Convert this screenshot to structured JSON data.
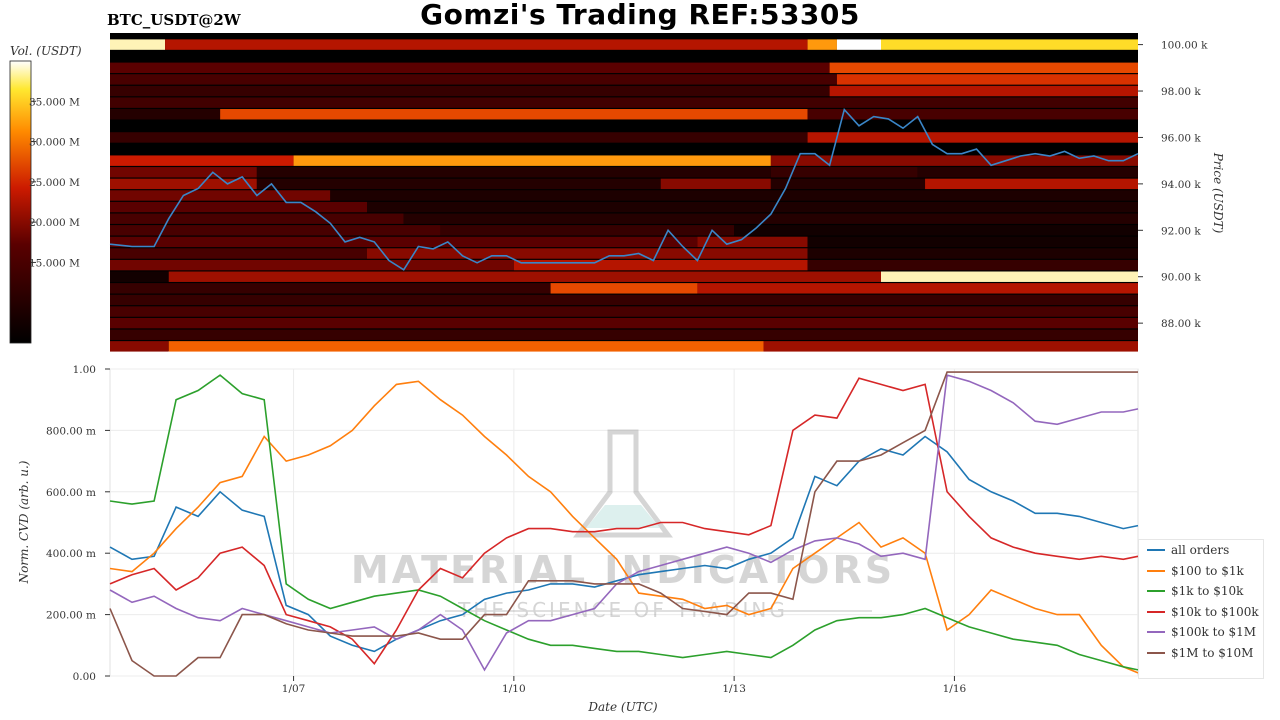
{
  "header": {
    "title": "Gomzi's Trading REF:53305",
    "symbol": "BTC_USDT@2W"
  },
  "watermark": {
    "brand": "MATERIAL INDICATORS",
    "tagline": "THE SCIENCE OF TRADING"
  },
  "colors": {
    "heatmap_bg": "#000000",
    "price_line": "#3a86c8",
    "colorbar_low": "#000000",
    "colorbar_mid": "#cc1a00",
    "colorbar_high": "#ffffff"
  },
  "chart_data": [
    {
      "type": "heatmap",
      "colorbar_label": "Vol. (USDT)",
      "colorbar_ticks": [
        "35.000 M",
        "30.000 M",
        "25.000 M",
        "20.000 M",
        "15.000 M"
      ],
      "colorbar_tick_values": [
        35,
        30,
        25,
        20,
        15
      ],
      "colorbar_range": [
        5,
        40
      ],
      "ylabel": "Price (USDT)",
      "ylim": [
        86.8,
        100.5
      ],
      "y_ticks": [
        "100.00 k",
        "98.00 k",
        "96.00 k",
        "94.00 k",
        "92.00 k",
        "90.00 k",
        "88.00 k"
      ],
      "y_tick_values": [
        100,
        98,
        96,
        94,
        92,
        90,
        88
      ],
      "x_range_days": [
        4.5,
        18.5
      ],
      "bands": [
        {
          "price": 100.0,
          "segments": [
            [
              4.5,
              5.25,
              0.95
            ],
            [
              5.25,
              14.0,
              0.45
            ],
            [
              14.0,
              14.4,
              0.75
            ],
            [
              14.4,
              15.0,
              1.0
            ],
            [
              15.0,
              18.5,
              0.85
            ]
          ]
        },
        {
          "price": 99.0,
          "segments": [
            [
              4.5,
              14.3,
              0.25
            ],
            [
              14.3,
              18.5,
              0.6
            ]
          ]
        },
        {
          "price": 98.5,
          "segments": [
            [
              4.5,
              14.4,
              0.2
            ],
            [
              14.4,
              18.5,
              0.55
            ]
          ]
        },
        {
          "price": 98.0,
          "segments": [
            [
              4.5,
              14.3,
              0.15
            ],
            [
              14.3,
              18.5,
              0.45
            ]
          ]
        },
        {
          "price": 97.5,
          "segments": [
            [
              4.5,
              18.5,
              0.18
            ]
          ]
        },
        {
          "price": 97.0,
          "segments": [
            [
              4.5,
              6.0,
              0.1
            ],
            [
              6.0,
              14.0,
              0.6
            ],
            [
              14.0,
              18.5,
              0.2
            ]
          ]
        },
        {
          "price": 96.0,
          "segments": [
            [
              4.5,
              14.0,
              0.15
            ],
            [
              14.0,
              18.5,
              0.45
            ]
          ]
        },
        {
          "price": 95.0,
          "segments": [
            [
              4.5,
              7.0,
              0.5
            ],
            [
              7.0,
              13.5,
              0.75
            ],
            [
              13.5,
              18.5,
              0.35
            ]
          ]
        },
        {
          "price": 94.5,
          "segments": [
            [
              4.5,
              6.5,
              0.3
            ],
            [
              6.5,
              13.5,
              0.1
            ],
            [
              13.5,
              15.5,
              0.15
            ],
            [
              15.5,
              18.5,
              0.1
            ]
          ]
        },
        {
          "price": 94.0,
          "segments": [
            [
              4.5,
              6.5,
              0.4
            ],
            [
              6.5,
              12.0,
              0.1
            ],
            [
              12.0,
              13.5,
              0.35
            ],
            [
              13.5,
              15.6,
              0.1
            ],
            [
              15.6,
              18.5,
              0.45
            ]
          ]
        },
        {
          "price": 93.5,
          "segments": [
            [
              4.5,
              7.5,
              0.3
            ],
            [
              7.5,
              18.5,
              0.08
            ]
          ]
        },
        {
          "price": 93.0,
          "segments": [
            [
              4.5,
              8.0,
              0.25
            ],
            [
              8.0,
              18.5,
              0.08
            ]
          ]
        },
        {
          "price": 92.5,
          "segments": [
            [
              4.5,
              8.5,
              0.2
            ],
            [
              8.5,
              18.5,
              0.1
            ]
          ]
        },
        {
          "price": 92.0,
          "segments": [
            [
              4.5,
              9.0,
              0.2
            ],
            [
              9.0,
              13.0,
              0.15
            ],
            [
              13.0,
              18.5,
              0.05
            ]
          ]
        },
        {
          "price": 91.5,
          "segments": [
            [
              4.5,
              12.5,
              0.25
            ],
            [
              12.5,
              14.0,
              0.35
            ],
            [
              14.0,
              18.5,
              0.05
            ]
          ]
        },
        {
          "price": 91.0,
          "segments": [
            [
              4.5,
              8.0,
              0.2
            ],
            [
              8.0,
              14.0,
              0.35
            ],
            [
              14.0,
              18.5,
              0.08
            ]
          ]
        },
        {
          "price": 90.5,
          "segments": [
            [
              4.5,
              10.0,
              0.3
            ],
            [
              10.0,
              14.0,
              0.45
            ],
            [
              14.0,
              18.5,
              0.15
            ]
          ]
        },
        {
          "price": 90.0,
          "segments": [
            [
              4.5,
              5.3,
              0.05
            ],
            [
              5.3,
              15.0,
              0.4
            ],
            [
              15.0,
              18.5,
              0.95
            ]
          ]
        },
        {
          "price": 89.5,
          "segments": [
            [
              4.5,
              10.5,
              0.15
            ],
            [
              10.5,
              12.5,
              0.6
            ],
            [
              12.5,
              18.5,
              0.45
            ]
          ]
        },
        {
          "price": 89.0,
          "segments": [
            [
              4.5,
              18.5,
              0.15
            ]
          ]
        },
        {
          "price": 88.5,
          "segments": [
            [
              4.5,
              18.5,
              0.2
            ]
          ]
        },
        {
          "price": 88.0,
          "segments": [
            [
              4.5,
              18.5,
              0.25
            ]
          ]
        },
        {
          "price": 87.5,
          "segments": [
            [
              4.5,
              18.5,
              0.15
            ]
          ]
        },
        {
          "price": 87.0,
          "segments": [
            [
              4.5,
              5.3,
              0.35
            ],
            [
              5.3,
              13.4,
              0.65
            ],
            [
              13.4,
              18.5,
              0.4
            ]
          ]
        }
      ],
      "price": {
        "x": [
          4.5,
          4.8,
          5.1,
          5.3,
          5.5,
          5.7,
          5.9,
          6.1,
          6.3,
          6.5,
          6.7,
          6.9,
          7.1,
          7.3,
          7.5,
          7.7,
          7.9,
          8.1,
          8.3,
          8.5,
          8.7,
          8.9,
          9.1,
          9.3,
          9.5,
          9.7,
          9.9,
          10.1,
          10.3,
          10.5,
          10.7,
          10.9,
          11.1,
          11.3,
          11.5,
          11.7,
          11.9,
          12.1,
          12.3,
          12.5,
          12.7,
          12.9,
          13.1,
          13.3,
          13.5,
          13.7,
          13.9,
          14.1,
          14.3,
          14.5,
          14.7,
          14.9,
          15.1,
          15.3,
          15.5,
          15.7,
          15.9,
          16.1,
          16.3,
          16.5,
          16.7,
          16.9,
          17.1,
          17.3,
          17.5,
          17.7,
          17.9,
          18.1,
          18.3,
          18.5
        ],
        "y": [
          91.4,
          91.3,
          91.3,
          92.5,
          93.5,
          93.8,
          94.5,
          94.0,
          94.3,
          93.5,
          94.0,
          93.2,
          93.2,
          92.8,
          92.3,
          91.5,
          91.7,
          91.5,
          90.7,
          90.3,
          91.3,
          91.2,
          91.5,
          90.9,
          90.6,
          90.9,
          90.9,
          90.6,
          90.6,
          90.6,
          90.6,
          90.6,
          90.6,
          90.9,
          90.9,
          91.0,
          90.7,
          92.0,
          91.3,
          90.7,
          92.0,
          91.4,
          91.6,
          92.1,
          92.7,
          93.8,
          95.3,
          95.3,
          94.8,
          97.2,
          96.5,
          96.9,
          96.8,
          96.4,
          96.9,
          95.7,
          95.3,
          95.3,
          95.5,
          94.8,
          95.0,
          95.2,
          95.3,
          95.2,
          95.4,
          95.1,
          95.2,
          95.0,
          95.0,
          95.3
        ]
      }
    },
    {
      "type": "line",
      "xlabel": "Date (UTC)",
      "ylabel": "Norm. CVD (arb. u.)",
      "ylim": [
        0,
        1
      ],
      "y_ticks": [
        "1.00",
        "800.00 m",
        "600.00 m",
        "400.00 m",
        "200.00 m",
        "0.00"
      ],
      "y_tick_values": [
        1.0,
        0.8,
        0.6,
        0.4,
        0.2,
        0.0
      ],
      "x_range_days": [
        4.5,
        18.5
      ],
      "x_ticks": [
        "1/07",
        "1/10",
        "1/13",
        "1/16"
      ],
      "x_tick_values": [
        7,
        10,
        13,
        16
      ],
      "legend_position": "bottom-right",
      "x": [
        4.5,
        4.8,
        5.1,
        5.4,
        5.7,
        6.0,
        6.3,
        6.6,
        6.9,
        7.2,
        7.5,
        7.8,
        8.1,
        8.4,
        8.7,
        9.0,
        9.3,
        9.6,
        9.9,
        10.2,
        10.5,
        10.8,
        11.1,
        11.4,
        11.7,
        12.0,
        12.3,
        12.6,
        12.9,
        13.2,
        13.5,
        13.8,
        14.1,
        14.4,
        14.7,
        15.0,
        15.3,
        15.6,
        15.9,
        16.2,
        16.5,
        16.8,
        17.1,
        17.4,
        17.7,
        18.0,
        18.3,
        18.5
      ],
      "series": [
        {
          "name": "all orders",
          "color": "#1f77b4",
          "values": [
            0.42,
            0.38,
            0.39,
            0.55,
            0.52,
            0.6,
            0.54,
            0.52,
            0.23,
            0.2,
            0.13,
            0.1,
            0.08,
            0.12,
            0.15,
            0.18,
            0.2,
            0.25,
            0.27,
            0.28,
            0.3,
            0.3,
            0.29,
            0.31,
            0.33,
            0.34,
            0.35,
            0.36,
            0.35,
            0.38,
            0.4,
            0.45,
            0.65,
            0.62,
            0.7,
            0.74,
            0.72,
            0.78,
            0.73,
            0.64,
            0.6,
            0.57,
            0.53,
            0.53,
            0.52,
            0.5,
            0.48,
            0.49
          ]
        },
        {
          "name": "$100 to $1k",
          "color": "#ff7f0e",
          "values": [
            0.35,
            0.34,
            0.4,
            0.48,
            0.55,
            0.63,
            0.65,
            0.78,
            0.7,
            0.72,
            0.75,
            0.8,
            0.88,
            0.95,
            0.96,
            0.9,
            0.85,
            0.78,
            0.72,
            0.65,
            0.6,
            0.52,
            0.45,
            0.38,
            0.27,
            0.26,
            0.25,
            0.22,
            0.23,
            0.2,
            0.22,
            0.35,
            0.4,
            0.45,
            0.5,
            0.42,
            0.45,
            0.4,
            0.15,
            0.2,
            0.28,
            0.25,
            0.22,
            0.2,
            0.2,
            0.1,
            0.03,
            0.01
          ]
        },
        {
          "name": "$1k to $10k",
          "color": "#2ca02c",
          "values": [
            0.57,
            0.56,
            0.57,
            0.9,
            0.93,
            0.98,
            0.92,
            0.9,
            0.3,
            0.25,
            0.22,
            0.24,
            0.26,
            0.27,
            0.28,
            0.26,
            0.22,
            0.18,
            0.15,
            0.12,
            0.1,
            0.1,
            0.09,
            0.08,
            0.08,
            0.07,
            0.06,
            0.07,
            0.08,
            0.07,
            0.06,
            0.1,
            0.15,
            0.18,
            0.19,
            0.19,
            0.2,
            0.22,
            0.19,
            0.16,
            0.14,
            0.12,
            0.11,
            0.1,
            0.07,
            0.05,
            0.03,
            0.02
          ]
        },
        {
          "name": "$10k to $100k",
          "color": "#d62728",
          "values": [
            0.3,
            0.33,
            0.35,
            0.28,
            0.32,
            0.4,
            0.42,
            0.36,
            0.2,
            0.18,
            0.16,
            0.12,
            0.04,
            0.15,
            0.28,
            0.35,
            0.32,
            0.4,
            0.45,
            0.48,
            0.48,
            0.47,
            0.47,
            0.48,
            0.48,
            0.5,
            0.5,
            0.48,
            0.47,
            0.46,
            0.49,
            0.8,
            0.85,
            0.84,
            0.97,
            0.95,
            0.93,
            0.95,
            0.6,
            0.52,
            0.45,
            0.42,
            0.4,
            0.39,
            0.38,
            0.39,
            0.38,
            0.39
          ]
        },
        {
          "name": "$100k to $1M",
          "color": "#9467bd",
          "values": [
            0.28,
            0.24,
            0.26,
            0.22,
            0.19,
            0.18,
            0.22,
            0.2,
            0.18,
            0.16,
            0.14,
            0.15,
            0.16,
            0.12,
            0.15,
            0.2,
            0.15,
            0.02,
            0.14,
            0.18,
            0.18,
            0.2,
            0.22,
            0.3,
            0.34,
            0.36,
            0.38,
            0.4,
            0.42,
            0.4,
            0.37,
            0.41,
            0.44,
            0.45,
            0.43,
            0.39,
            0.4,
            0.38,
            0.98,
            0.96,
            0.93,
            0.89,
            0.83,
            0.82,
            0.84,
            0.86,
            0.86,
            0.87
          ]
        },
        {
          "name": "$1M to $10M",
          "color": "#8c564b",
          "values": [
            0.22,
            0.05,
            0.0,
            0.0,
            0.06,
            0.06,
            0.2,
            0.2,
            0.17,
            0.15,
            0.14,
            0.13,
            0.13,
            0.13,
            0.14,
            0.12,
            0.12,
            0.2,
            0.2,
            0.31,
            0.31,
            0.31,
            0.3,
            0.3,
            0.3,
            0.27,
            0.22,
            0.21,
            0.2,
            0.27,
            0.27,
            0.25,
            0.6,
            0.7,
            0.7,
            0.72,
            0.76,
            0.8,
            0.99,
            0.99,
            0.99,
            0.99,
            0.99,
            0.99,
            0.99,
            0.99,
            0.99,
            0.99
          ]
        }
      ]
    }
  ]
}
